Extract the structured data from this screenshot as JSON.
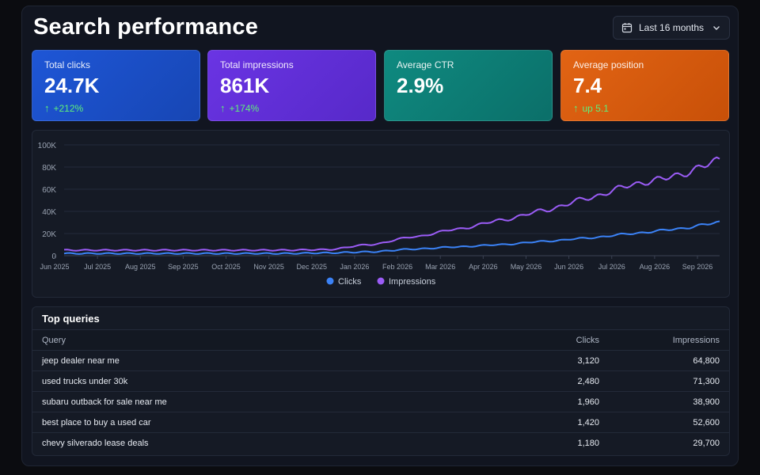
{
  "header": {
    "title": "Search performance",
    "date_range": "Last 16 months"
  },
  "cards": [
    {
      "label": "Total clicks",
      "value": "24.7K",
      "delta": "+212%",
      "color": "#1e56d6"
    },
    {
      "label": "Total impressions",
      "value": "861K",
      "delta": "+174%",
      "color": "#6a34e3"
    },
    {
      "label": "Average CTR",
      "value": "2.9%",
      "delta": "",
      "color": "#0f8a80"
    },
    {
      "label": "Average position",
      "value": "7.4",
      "delta": "up 5.1",
      "color": "#e26414"
    }
  ],
  "chart_data": {
    "type": "line",
    "categories": [
      "Jun 2025",
      "Jul 2025",
      "Aug 2025",
      "Sep 2025",
      "Oct 2025",
      "Nov 2025",
      "Dec 2025",
      "Jan 2026",
      "Feb 2026",
      "Mar 2026",
      "Apr 2026",
      "May 2026",
      "Jun 2026",
      "Jul 2026",
      "Aug 2026",
      "Sep 2026"
    ],
    "y_ticks": [
      "0",
      "20K",
      "40K",
      "60K",
      "80K",
      "100K"
    ],
    "ylim": [
      0,
      100000
    ],
    "grid": true,
    "legend": "bottom-center",
    "series": [
      {
        "name": "Clicks",
        "color": "#3b82f6",
        "values": [
          2000,
          2000,
          2000,
          2000,
          2000,
          2000,
          2500,
          3500,
          6000,
          8000,
          10000,
          13000,
          16000,
          20000,
          24000,
          30000
        ]
      },
      {
        "name": "Impressions",
        "color": "#9b5cf6",
        "values": [
          5000,
          5000,
          5000,
          5000,
          5000,
          5000,
          5500,
          10000,
          17000,
          24000,
          32000,
          41000,
          52000,
          64000,
          72000,
          86000
        ]
      }
    ]
  },
  "table": {
    "title": "Top queries",
    "columns": {
      "query": "Query",
      "clicks": "Clicks",
      "impressions": "Impressions"
    },
    "rows": [
      {
        "query": "jeep dealer near me",
        "clicks": "3,120",
        "impressions": "64,800"
      },
      {
        "query": "used trucks under 30k",
        "clicks": "2,480",
        "impressions": "71,300"
      },
      {
        "query": "subaru outback for sale near me",
        "clicks": "1,960",
        "impressions": "38,900"
      },
      {
        "query": "best place to buy a used car",
        "clicks": "1,420",
        "impressions": "52,600"
      },
      {
        "query": "chevy silverado lease deals",
        "clicks": "1,180",
        "impressions": "29,700"
      }
    ]
  }
}
